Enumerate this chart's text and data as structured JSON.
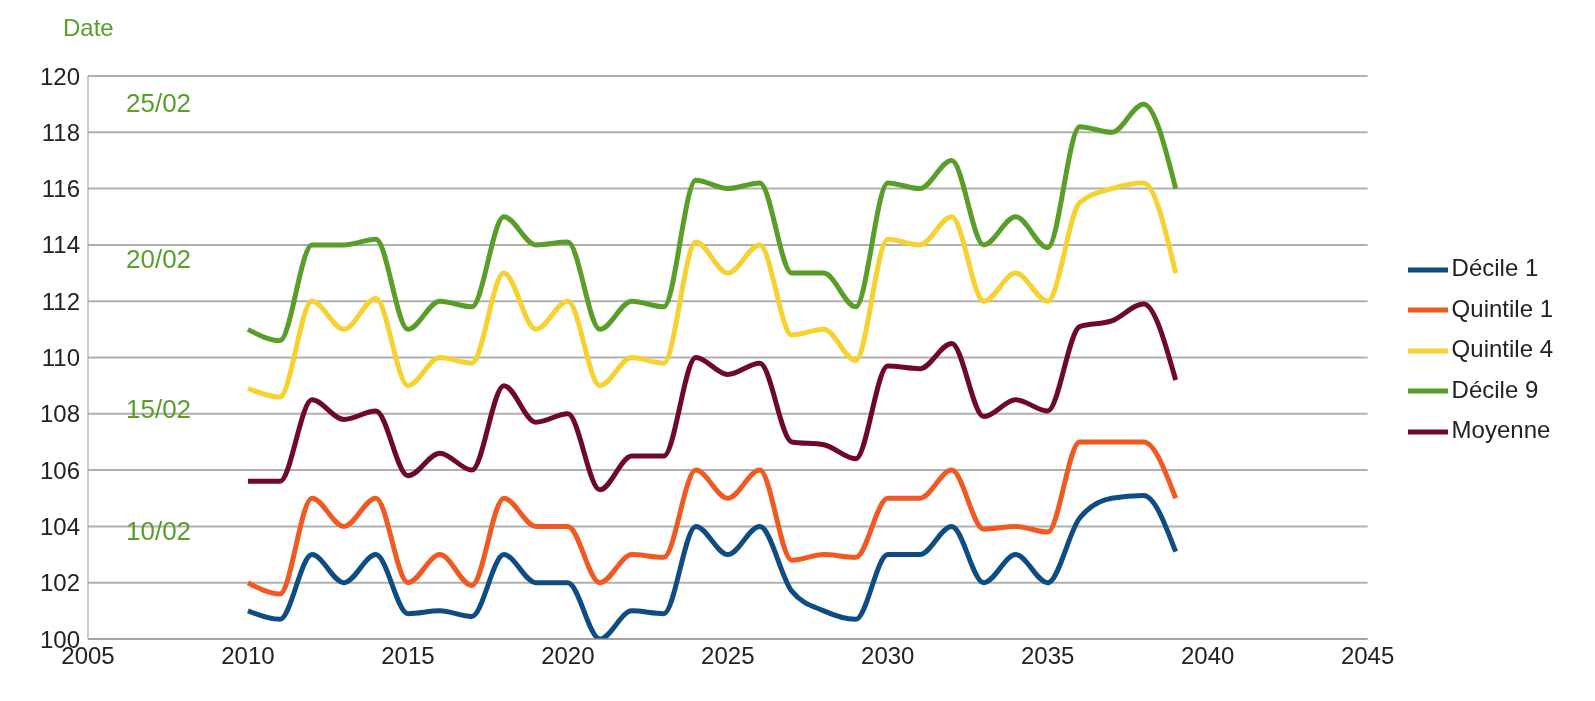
{
  "chart_data": {
    "type": "line",
    "annotations": [
      "Date",
      "25/02",
      "20/02",
      "15/02",
      "10/02"
    ],
    "x": [
      2010,
      2011,
      2012,
      2013,
      2014,
      2015,
      2016,
      2017,
      2018,
      2019,
      2020,
      2021,
      2022,
      2023,
      2024,
      2025,
      2026,
      2027,
      2028,
      2029,
      2030,
      2031,
      2032,
      2033,
      2034,
      2035,
      2036,
      2037,
      2038,
      2039
    ],
    "series": [
      {
        "name": "Décile 1",
        "color": "#0f4c81",
        "values": [
          101,
          100.7,
          103,
          102,
          103,
          100.9,
          101,
          100.8,
          103,
          102,
          102,
          100,
          101,
          100.9,
          104,
          103,
          104,
          101.7,
          101,
          100.7,
          103,
          103,
          104,
          102,
          103,
          102,
          104.3,
          105,
          105.1,
          103.1
        ]
      },
      {
        "name": "Quintile 1",
        "color": "#f05a22",
        "values": [
          102,
          101.6,
          105,
          104,
          105,
          102,
          103,
          101.9,
          105,
          104,
          104,
          102,
          103,
          102.9,
          106,
          105,
          106,
          102.8,
          103,
          102.9,
          105,
          105,
          106,
          103.9,
          104,
          103.8,
          107,
          107,
          107,
          105
        ]
      },
      {
        "name": "Quintile 4",
        "color": "#f5d131",
        "values": [
          108.9,
          108.6,
          112,
          111,
          112.1,
          109,
          110,
          109.8,
          113,
          111,
          112,
          109,
          110,
          109.8,
          114.1,
          113,
          114,
          110.8,
          111,
          109.9,
          114.2,
          114,
          115,
          112,
          113,
          112,
          115.5,
          116,
          116.2,
          113
        ]
      },
      {
        "name": "Décile 9",
        "color": "#5a9e2a",
        "values": [
          111,
          110.6,
          114,
          114,
          114.2,
          111,
          112,
          111.8,
          115,
          114,
          114.1,
          111,
          112,
          111.8,
          116.3,
          116,
          116.2,
          113,
          113,
          111.8,
          116.2,
          116,
          117,
          114,
          115,
          113.9,
          118.2,
          118,
          119,
          116
        ]
      },
      {
        "name": "Moyenne",
        "color": "#6e0a28",
        "values": [
          105.6,
          105.6,
          108.5,
          107.8,
          108.1,
          105.8,
          106.6,
          106,
          109,
          107.7,
          108,
          105.3,
          106.5,
          106.5,
          110,
          109.4,
          109.8,
          107,
          106.9,
          106.4,
          109.7,
          109.6,
          110.5,
          107.9,
          108.5,
          108.1,
          111.1,
          111.3,
          111.9,
          109.2
        ]
      }
    ],
    "xlim": [
      2005,
      2045
    ],
    "xticks": [
      2005,
      2010,
      2015,
      2020,
      2025,
      2030,
      2035,
      2040,
      2045
    ],
    "ylim": [
      100,
      120
    ],
    "yticks": [
      100,
      102,
      104,
      106,
      108,
      110,
      112,
      114,
      116,
      118,
      120
    ],
    "grid": "y",
    "legend": "right",
    "marker": "none",
    "line_style": "solid"
  }
}
